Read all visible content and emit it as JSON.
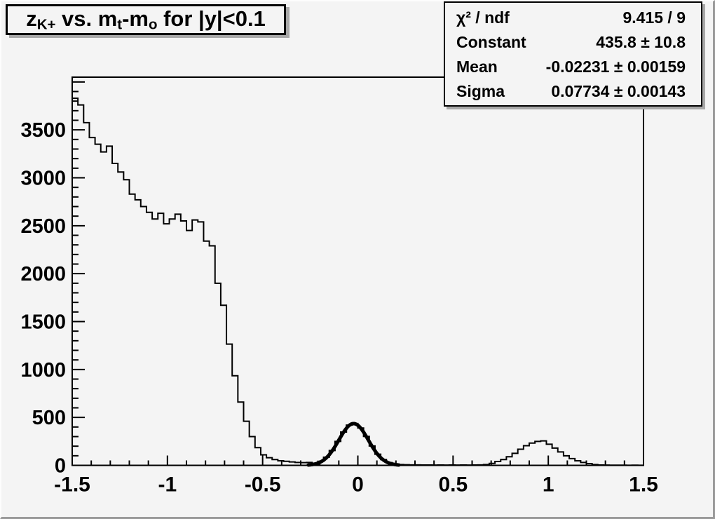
{
  "canvas": {
    "background": "#f4f4f4",
    "line_color": "#000000",
    "bevel_dark": "#9a9a9a",
    "bevel_light": "#fdfdfd"
  },
  "title": {
    "text": "z_{K+} vs. m_t-m_o for |y|<0.1",
    "segments": [
      {
        "t": "z"
      },
      {
        "t": "K+",
        "sub": true
      },
      {
        "t": " vs. m"
      },
      {
        "t": "t",
        "sub": true
      },
      {
        "t": "-m"
      },
      {
        "t": "o",
        "sub": true
      },
      {
        "t": " for |y|<0.1"
      }
    ]
  },
  "stats_box": {
    "rows": [
      {
        "label": "χ² / ndf",
        "value": "9.415 / 9"
      },
      {
        "label": "Constant",
        "value": "435.8 ± 10.8"
      },
      {
        "label": "Mean",
        "value": "-0.02231 ± 0.00159"
      },
      {
        "label": "Sigma",
        "value": "0.07734 ± 0.00143"
      }
    ]
  },
  "chart_data": {
    "type": "bar",
    "subtype": "root-histogram-step",
    "title": "z_{K+} vs. m_t-m_o for |y|<0.1",
    "xlabel": "",
    "ylabel": "",
    "xlim": [
      -1.5,
      1.5
    ],
    "ylim": [
      0,
      4050
    ],
    "grid": false,
    "legend": false,
    "n_bins": 100,
    "bin_width": 0.03,
    "bin_start": -1.5,
    "bin_values": [
      3830,
      3760,
      3575,
      3420,
      3350,
      3270,
      3330,
      3150,
      3060,
      2980,
      2830,
      2770,
      2700,
      2640,
      2570,
      2630,
      2520,
      2570,
      2620,
      2550,
      2450,
      2560,
      2540,
      2340,
      2290,
      1900,
      1670,
      1265,
      935,
      660,
      460,
      300,
      185,
      110,
      80,
      60,
      48,
      42,
      36,
      30,
      28,
      30,
      22,
      42,
      85,
      155,
      250,
      348,
      420,
      436,
      390,
      302,
      202,
      116,
      60,
      28,
      14,
      8,
      6,
      5,
      5,
      4,
      4,
      3,
      4,
      3,
      4,
      3,
      4,
      3,
      4,
      5,
      8,
      20,
      40,
      60,
      90,
      125,
      168,
      205,
      232,
      250,
      255,
      220,
      180,
      140,
      100,
      70,
      48,
      30,
      18,
      8,
      4,
      3,
      2,
      2,
      2,
      1,
      2,
      1
    ],
    "fit": {
      "function": "gaussian",
      "chi2": 9.415,
      "ndf": 9,
      "constant": 435.8,
      "constant_err": 10.8,
      "mean": -0.02231,
      "mean_err": 0.00159,
      "sigma": 0.07734,
      "sigma_err": 0.00143,
      "draw_range": [
        -0.26,
        0.215
      ],
      "line_width": 5
    },
    "x_axis": {
      "minor_step": 0.1,
      "major_step": 0.5,
      "major_ticks": [
        -1.5,
        -1,
        -0.5,
        0,
        0.5,
        1,
        1.5
      ],
      "tick_labels": [
        "-1.5",
        "-1",
        "-0.5",
        "0",
        "0.5",
        "1",
        "1.5"
      ]
    },
    "y_axis": {
      "minor_step": 100,
      "major_step": 500,
      "labeled_ticks": [
        0,
        500,
        1000,
        1500,
        2000,
        2500,
        3000,
        3500
      ],
      "tick_labels": [
        "0",
        "500",
        "1000",
        "1500",
        "2000",
        "2500",
        "3000",
        "3500"
      ]
    }
  }
}
